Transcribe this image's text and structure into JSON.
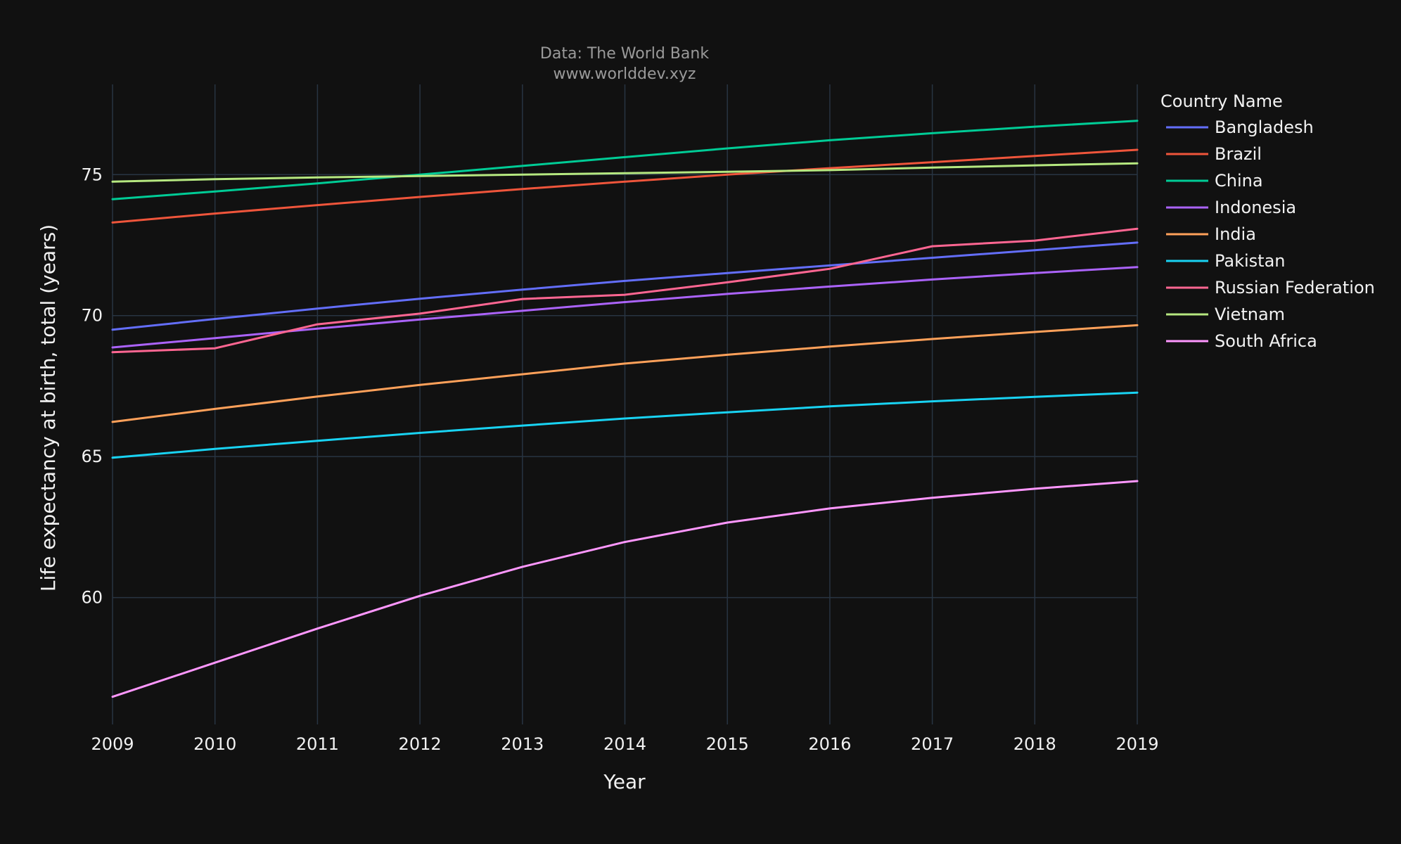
{
  "chart_data": {
    "type": "line",
    "annotation": [
      "Data: The World Bank",
      "www.worlddev.xyz"
    ],
    "xlabel": "Year",
    "ylabel": "Life expectancy at birth, total (years)",
    "xlim": [
      2009,
      2019
    ],
    "ylim": [
      55.5,
      78.2
    ],
    "x_ticks": [
      2009,
      2010,
      2011,
      2012,
      2013,
      2014,
      2015,
      2016,
      2017,
      2018,
      2019
    ],
    "y_ticks": [
      60,
      65,
      70,
      75
    ],
    "grid": true,
    "legend_title": "Country Name",
    "legend_position": "right",
    "x": [
      2009,
      2010,
      2011,
      2012,
      2013,
      2014,
      2015,
      2016,
      2017,
      2018,
      2019
    ],
    "series": [
      {
        "name": "Bangladesh",
        "color": "#636efa",
        "values": [
          69.5,
          69.88,
          70.25,
          70.6,
          70.92,
          71.23,
          71.51,
          71.78,
          72.05,
          72.32,
          72.59
        ]
      },
      {
        "name": "Brazil",
        "color": "#EF553B",
        "values": [
          73.3,
          73.62,
          73.92,
          74.21,
          74.49,
          74.75,
          75.0,
          75.23,
          75.44,
          75.66,
          75.88
        ]
      },
      {
        "name": "China",
        "color": "#00cc96",
        "values": [
          74.13,
          74.4,
          74.69,
          75.0,
          75.31,
          75.62,
          75.93,
          76.22,
          76.47,
          76.7,
          76.91
        ]
      },
      {
        "name": "Indonesia",
        "color": "#ab63fa",
        "values": [
          68.87,
          69.2,
          69.54,
          69.86,
          70.17,
          70.48,
          70.77,
          71.03,
          71.28,
          71.51,
          71.72
        ]
      },
      {
        "name": "India",
        "color": "#FFA15A",
        "values": [
          66.23,
          66.69,
          67.13,
          67.54,
          67.92,
          68.3,
          68.61,
          68.9,
          69.17,
          69.42,
          69.66
        ]
      },
      {
        "name": "Pakistan",
        "color": "#19d3f3",
        "values": [
          64.96,
          65.27,
          65.56,
          65.84,
          66.1,
          66.35,
          66.57,
          66.78,
          66.96,
          67.12,
          67.27
        ]
      },
      {
        "name": "Russian Federation",
        "color": "#FF6692",
        "values": [
          68.7,
          68.84,
          69.69,
          70.07,
          70.59,
          70.74,
          71.18,
          71.66,
          72.46,
          72.66,
          73.08
        ]
      },
      {
        "name": "Vietnam",
        "color": "#B6E880",
        "values": [
          74.75,
          74.84,
          74.9,
          74.95,
          75.0,
          75.05,
          75.1,
          75.16,
          75.25,
          75.33,
          75.4
        ]
      },
      {
        "name": "South Africa",
        "color": "#FF97FF",
        "values": [
          56.48,
          57.69,
          58.9,
          60.06,
          61.09,
          61.97,
          62.66,
          63.16,
          63.54,
          63.86,
          64.13
        ]
      }
    ]
  }
}
